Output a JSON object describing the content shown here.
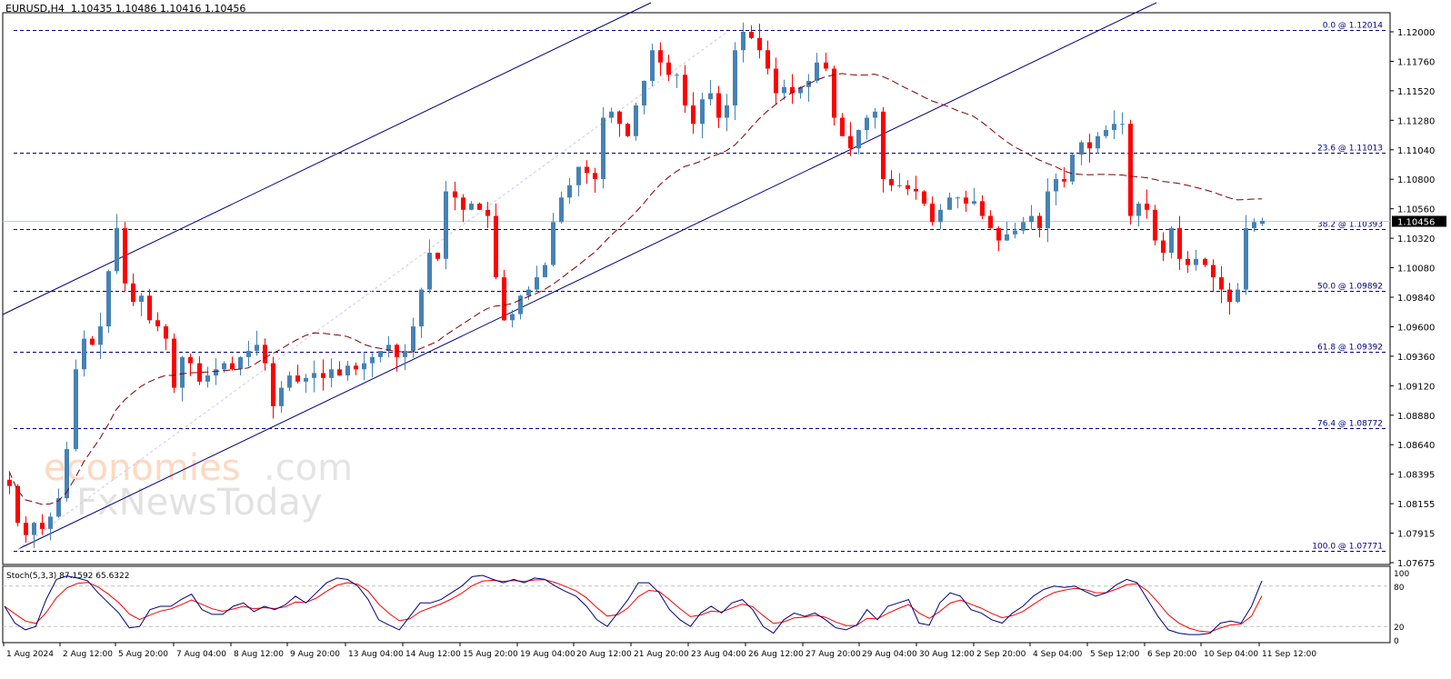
{
  "header": {
    "symbol": "EURUSD,H4",
    "ohlc": "1.10435 1.10486 1.10416 1.10456"
  },
  "price_axis": {
    "ticks": [
      "1.12000",
      "1.11760",
      "1.11520",
      "1.11280",
      "1.11040",
      "1.10800",
      "1.10560",
      "1.10320",
      "1.10080",
      "1.09840",
      "1.09600",
      "1.09360",
      "1.09120",
      "1.08880",
      "1.08640",
      "1.08395",
      "1.08155",
      "1.07915",
      "1.07675"
    ],
    "current_price": "1.10456"
  },
  "fibonacci": {
    "levels": [
      {
        "label": "0.0 @ 1.12014",
        "price": 1.12014
      },
      {
        "label": "23.6 @ 1.11013",
        "price": 1.11013
      },
      {
        "label": "38.2 @ 1.10393",
        "price": 1.10393
      },
      {
        "label": "50.0 @ 1.09892",
        "price": 1.09892
      },
      {
        "label": "61.8 @ 1.09392",
        "price": 1.09392
      },
      {
        "label": "76.4 @ 1.08772",
        "price": 1.08772
      },
      {
        "label": "100.0 @ 1.07771",
        "price": 1.07771
      }
    ]
  },
  "indicator": {
    "label": "Stoch(5,3,3) 87.1592 65.6322",
    "axis_ticks": [
      "100",
      "80",
      "20",
      "0"
    ]
  },
  "time_axis": {
    "labels": [
      "1 Aug 2024",
      "2 Aug 12:00",
      "5 Aug 20:00",
      "7 Aug 04:00",
      "8 Aug 12:00",
      "9 Aug 20:00",
      "13 Aug 04:00",
      "14 Aug 12:00",
      "15 Aug 20:00",
      "19 Aug 04:00",
      "20 Aug 12:00",
      "21 Aug 20:00",
      "23 Aug 04:00",
      "26 Aug 12:00",
      "27 Aug 20:00",
      "29 Aug 04:00",
      "30 Aug 12:00",
      "2 Sep 20:00",
      "4 Sep 04:00",
      "5 Sep 12:00",
      "6 Sep 20:00",
      "10 Sep 04:00",
      "11 Sep 12:00"
    ]
  },
  "watermark": {
    "line1": "economies.com",
    "line2": "FxNewsToday"
  },
  "colors": {
    "bull": "#4682b4",
    "bear": "#ff0000",
    "fib": "#000080",
    "channel": "#000080",
    "ma": "#800000",
    "stoch_main": "#000080",
    "stoch_signal": "#ff0000",
    "current_line": "#a8d8dc"
  },
  "chart_data": {
    "type": "candlestick",
    "title": "EURUSD,H4",
    "xlabel": "",
    "ylabel": "",
    "ylim": [
      1.07675,
      1.121
    ],
    "x_labels": [
      "1 Aug 2024",
      "2 Aug 12:00",
      "5 Aug 20:00",
      "7 Aug 04:00",
      "8 Aug 12:00",
      "9 Aug 20:00",
      "13 Aug 04:00",
      "14 Aug 12:00",
      "15 Aug 20:00",
      "19 Aug 04:00",
      "20 Aug 12:00",
      "21 Aug 20:00",
      "23 Aug 04:00",
      "26 Aug 12:00",
      "27 Aug 20:00",
      "29 Aug 04:00",
      "30 Aug 12:00",
      "2 Sep 20:00",
      "4 Sep 04:00",
      "5 Sep 12:00",
      "6 Sep 20:00",
      "10 Sep 04:00",
      "11 Sep 12:00"
    ],
    "last_ohlc": {
      "open": 1.10435,
      "high": 1.10486,
      "low": 1.10416,
      "close": 1.10456
    },
    "fibonacci_retracement": [
      {
        "level": 0.0,
        "price": 1.12014
      },
      {
        "level": 23.6,
        "price": 1.11013
      },
      {
        "level": 38.2,
        "price": 1.10393
      },
      {
        "level": 50.0,
        "price": 1.09892
      },
      {
        "level": 61.8,
        "price": 1.09392
      },
      {
        "level": 76.4,
        "price": 1.08772
      },
      {
        "level": 100.0,
        "price": 1.07771
      }
    ],
    "indicators": [
      {
        "name": "Stoch(5,3,3)",
        "main": 87.1592,
        "signal": 65.6322,
        "levels": [
          80,
          20
        ]
      },
      {
        "name": "Moving Average",
        "style": "dashed",
        "color": "#800000"
      }
    ],
    "closes_approx": [
      1.083,
      1.08,
      1.079,
      1.08,
      1.0795,
      1.0805,
      1.082,
      1.086,
      1.0925,
      1.095,
      1.0945,
      1.096,
      1.1005,
      1.104,
      1.0995,
      1.098,
      1.0985,
      1.0965,
      1.096,
      1.095,
      1.091,
      1.0935,
      1.093,
      1.0915,
      1.092,
      1.0925,
      1.093,
      1.0925,
      1.0935,
      1.094,
      1.0945,
      1.093,
      1.0895,
      1.091,
      1.092,
      1.0915,
      1.0918,
      1.0922,
      1.0918,
      1.0925,
      1.092,
      1.0928,
      1.0925,
      1.093,
      1.0935,
      1.094,
      1.0945,
      1.0935,
      1.094,
      1.096,
      1.099,
      1.102,
      1.1015,
      1.107,
      1.1065,
      1.1055,
      1.106,
      1.1055,
      1.105,
      1.1,
      1.0965,
      1.097,
      1.0985,
      1.099,
      1.1,
      1.101,
      1.1045,
      1.1065,
      1.1075,
      1.109,
      1.1085,
      1.108,
      1.113,
      1.1135,
      1.1125,
      1.1115,
      1.114,
      1.116,
      1.1185,
      1.1175,
      1.1165,
      1.1165,
      1.114,
      1.1125,
      1.1145,
      1.115,
      1.113,
      1.114,
      1.1185,
      1.12,
      1.1195,
      1.1185,
      1.117,
      1.115,
      1.1155,
      1.115,
      1.1155,
      1.116,
      1.1175,
      1.117,
      1.113,
      1.1115,
      1.1105,
      1.112,
      1.113,
      1.1135,
      1.108,
      1.1075,
      1.1075,
      1.1072,
      1.107,
      1.106,
      1.1045,
      1.1055,
      1.1065,
      1.1065,
      1.106,
      1.1062,
      1.105,
      1.104,
      1.103,
      1.1035,
      1.1038,
      1.1045,
      1.105,
      1.104,
      1.107,
      1.108,
      1.1078,
      1.11,
      1.111,
      1.1105,
      1.1115,
      1.112,
      1.1125,
      1.1125,
      1.105,
      1.106,
      1.1055,
      1.103,
      1.102,
      1.104,
      1.1015,
      1.101,
      1.1015,
      1.101,
      1.1,
      1.099,
      1.098,
      1.099,
      1.104,
      1.1045,
      1.1046
    ]
  }
}
